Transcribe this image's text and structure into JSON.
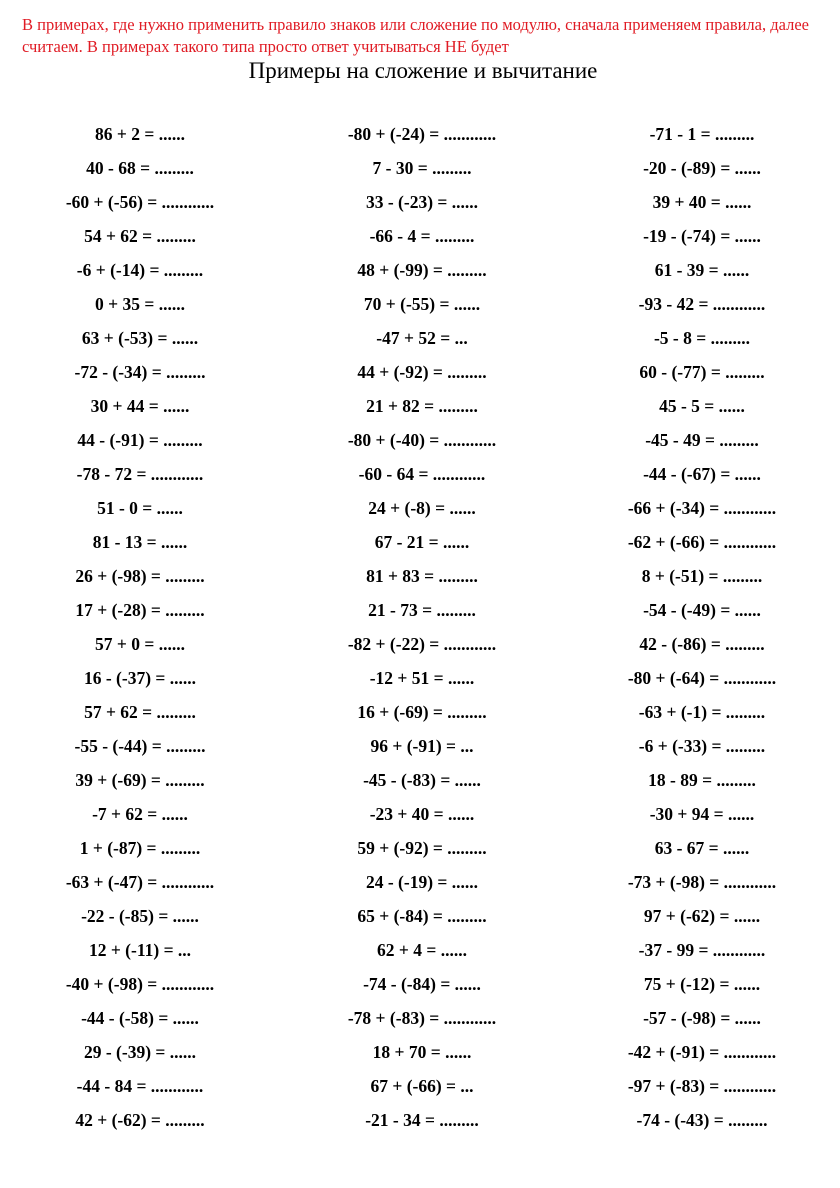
{
  "note": "В примерах, где нужно применить правило знаков или сложение по модулю, сначала применяем правила, далее считаем. В примерах такого типа просто ответ учитываться НЕ будет",
  "title": "Примеры на сложение и вычитание",
  "rows": [
    [
      "86 + 2 = ......",
      "-80 + (-24) = ............",
      "-71 - 1 = ........."
    ],
    [
      "40 - 68 = .........",
      "7 - 30 = .........",
      "-20 - (-89) = ......"
    ],
    [
      "-60 + (-56) = ............",
      "33 - (-23) = ......",
      "39 + 40 = ......"
    ],
    [
      "54 + 62 = .........",
      "-66 - 4 = .........",
      "-19 - (-74) = ......"
    ],
    [
      "-6 + (-14) = .........",
      "48 + (-99) = .........",
      "61 - 39 = ......"
    ],
    [
      "0 + 35 = ......",
      "70 + (-55) = ......",
      "-93 - 42 = ............"
    ],
    [
      "63 + (-53) = ......",
      "-47 + 52 = ...",
      "-5 - 8 = ........."
    ],
    [
      "-72 - (-34) = .........",
      "44 + (-92) = .........",
      "60 - (-77) = ........."
    ],
    [
      "30 + 44 = ......",
      "21 + 82 = .........",
      "45 - 5 = ......"
    ],
    [
      "44 - (-91) = .........",
      "-80 + (-40) = ............",
      "-45 - 49 = ........."
    ],
    [
      "-78 - 72 = ............",
      "-60 - 64 = ............",
      "-44 - (-67) = ......"
    ],
    [
      "51 - 0 = ......",
      "24 + (-8) = ......",
      "-66 + (-34) = ............"
    ],
    [
      "81 - 13 = ......",
      "67 - 21 = ......",
      "-62 + (-66) = ............"
    ],
    [
      "26 + (-98) = .........",
      "81 + 83 = .........",
      "8 + (-51) = ........."
    ],
    [
      "17 + (-28) = .........",
      "21 - 73 = .........",
      "-54 - (-49) = ......"
    ],
    [
      "57 + 0 = ......",
      "-82 + (-22) = ............",
      "42 - (-86) = ........."
    ],
    [
      "16 - (-37) = ......",
      "-12 + 51 = ......",
      "-80 + (-64) = ............"
    ],
    [
      "57 + 62 = .........",
      "16 + (-69) = .........",
      "-63 + (-1) = ........."
    ],
    [
      "-55 - (-44) = .........",
      "96 + (-91) = ...",
      "-6 + (-33) = ........."
    ],
    [
      "39 + (-69) = .........",
      "-45 - (-83) = ......",
      "18 - 89 = ........."
    ],
    [
      "-7 + 62 = ......",
      "-23 + 40 = ......",
      "-30 + 94 = ......"
    ],
    [
      "1 + (-87) = .........",
      "59 + (-92) = .........",
      "63 - 67 = ......"
    ],
    [
      "-63 + (-47) = ............",
      "24 - (-19) = ......",
      "-73 + (-98) = ............"
    ],
    [
      "-22 - (-85) = ......",
      "65 + (-84) = .........",
      "97 + (-62) = ......"
    ],
    [
      "12 + (-11) = ...",
      "62 + 4 = ......",
      "-37 - 99 = ............"
    ],
    [
      "-40 + (-98) = ............",
      "-74 - (-84) = ......",
      "75 + (-12) = ......"
    ],
    [
      "-44 - (-58) = ......",
      "-78 + (-83) = ............",
      "-57 - (-98) = ......"
    ],
    [
      "29 - (-39) = ......",
      "18 + 70 = ......",
      "-42 + (-91) = ............"
    ],
    [
      "-44 - 84 = ............",
      "67 + (-66) = ...",
      "-97 + (-83) = ............"
    ],
    [
      "42 + (-62) = .........",
      "-21 - 34 = .........",
      "-74 - (-43) = ........."
    ]
  ],
  "colors": {
    "note": "#e01b24",
    "text": "#000000"
  }
}
